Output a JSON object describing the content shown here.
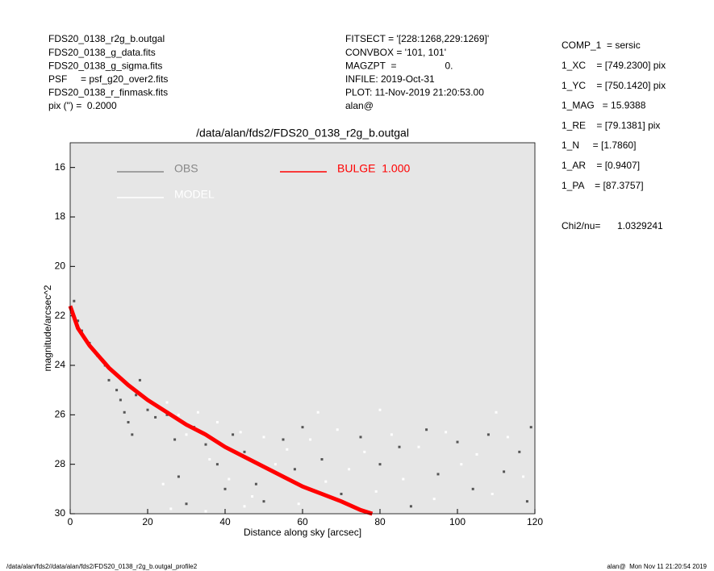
{
  "info_left": [
    "FDS20_0138_r2g_b.outgal",
    "FDS20_0138_g_data.fits",
    "FDS20_0138_g_sigma.fits",
    "PSF     = psf_g20_over2.fits",
    "FDS20_0138_r_finmask.fits",
    "pix (\") =  0.2000"
  ],
  "info_middle": [
    "FITSECT = '[228:1268,229:1269]'",
    "CONVBOX = '101, 101'",
    "MAGZPT  =                  0.",
    "INFILE: 2019-Oct-31",
    "PLOT: 11-Nov-2019 21:20:53.00",
    "alan@"
  ],
  "params": [
    "COMP_1  = sersic",
    "1_XC    = [749.2300] pix",
    "1_YC    = [750.1420] pix",
    "1_MAG   = 15.9388",
    "1_RE    = [79.1381] pix",
    "1_N     = [1.7860]",
    "1_AR    = [0.9407]",
    "1_PA    = [87.3757]"
  ],
  "chi2_label": "Chi2/nu=",
  "chi2_value": "1.0329241",
  "footer_left": "/data/alan/fds2//data/alan/fds2/FDS20_0138_r2g_b.outgal_profile2",
  "footer_right": "alan@  Mon Nov 11 21:20:54 2019",
  "chart_data": {
    "type": "scatter",
    "title": "/data/alan/fds2/FDS20_0138_r2g_b.outgal",
    "x_label": "Distance along sky [arcsec]",
    "y_label": "magnitude/arcsec^2",
    "xlim": [
      0,
      120
    ],
    "ylim": [
      15,
      30
    ],
    "y_inverted": true,
    "xticks": [
      0,
      20,
      40,
      60,
      80,
      100,
      120
    ],
    "yticks": [
      16,
      18,
      20,
      22,
      24,
      26,
      28,
      30
    ],
    "background": "#e6e6e6",
    "series": [
      {
        "name": "OBS",
        "color": "#555555",
        "legend_color": "#888888",
        "mode": "points",
        "x": [
          1,
          2,
          3,
          5,
          7,
          9,
          10,
          12,
          13,
          14,
          15,
          16,
          17,
          18,
          20,
          22,
          25,
          27,
          28,
          30,
          32,
          35,
          38,
          40,
          42,
          45,
          48,
          50,
          55,
          58,
          60,
          65,
          70,
          75,
          80,
          85,
          88,
          92,
          95,
          100,
          104,
          108,
          112,
          116,
          119,
          118
        ],
        "values": [
          21.4,
          22.2,
          22.6,
          23.1,
          23.6,
          24.0,
          24.6,
          25.0,
          25.4,
          25.9,
          26.3,
          26.8,
          25.2,
          24.6,
          25.8,
          26.1,
          26.0,
          27.0,
          28.5,
          29.6,
          26.5,
          27.2,
          28.0,
          29.0,
          26.8,
          27.5,
          28.8,
          29.5,
          27.0,
          28.2,
          26.5,
          27.8,
          29.2,
          26.9,
          28.0,
          27.3,
          29.7,
          26.6,
          28.4,
          27.1,
          29.0,
          26.8,
          28.3,
          27.5,
          26.5,
          29.5
        ]
      },
      {
        "name": "MODEL",
        "color": "#ffffff",
        "legend_color": "#ffffff",
        "mode": "points",
        "x": [
          25,
          28,
          30,
          33,
          36,
          38,
          41,
          44,
          47,
          50,
          53,
          56,
          59,
          62,
          66,
          69,
          72,
          76,
          79,
          83,
          86,
          90,
          94,
          97,
          101,
          105,
          109,
          113,
          117,
          24,
          26,
          35,
          45,
          64,
          80,
          110
        ],
        "values": [
          25.5,
          26.0,
          26.8,
          25.9,
          27.8,
          26.3,
          28.6,
          26.7,
          29.3,
          26.9,
          28.0,
          27.4,
          29.6,
          27.0,
          28.7,
          26.6,
          28.2,
          27.5,
          29.1,
          26.8,
          28.6,
          27.3,
          29.4,
          26.7,
          28.0,
          27.6,
          29.2,
          26.9,
          28.5,
          28.8,
          29.8,
          29.9,
          29.7,
          25.9,
          25.8,
          25.9
        ]
      },
      {
        "name": "BULGE  1.000",
        "color": "#ff0000",
        "legend_color": "#ff0000",
        "mode": "line",
        "x": [
          0,
          2,
          5,
          10,
          15,
          20,
          25,
          30,
          35,
          40,
          45,
          50,
          55,
          60,
          65,
          70,
          75,
          78
        ],
        "values": [
          21.6,
          22.5,
          23.2,
          24.1,
          24.8,
          25.4,
          25.9,
          26.4,
          26.8,
          27.3,
          27.7,
          28.1,
          28.5,
          28.9,
          29.2,
          29.5,
          29.85,
          30
        ]
      }
    ]
  }
}
